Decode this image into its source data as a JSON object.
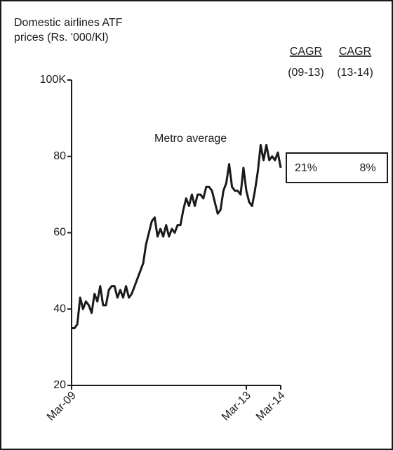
{
  "chart_data": {
    "type": "line",
    "title": "Domestic airlines ATF prices (Rs. '000/Kl)",
    "annotation": "Metro average",
    "cagr_table": {
      "headers": [
        [
          "CAGR",
          "(09-13)"
        ],
        [
          "CAGR",
          "(13-14)"
        ]
      ],
      "values": [
        "21%",
        "8%"
      ]
    },
    "categories": [
      "Mar-09",
      null,
      null,
      null,
      null,
      null,
      null,
      null,
      null,
      null,
      null,
      null,
      null,
      null,
      null,
      null,
      null,
      null,
      null,
      null,
      null,
      null,
      null,
      null,
      null,
      null,
      null,
      null,
      null,
      null,
      null,
      null,
      null,
      null,
      null,
      null,
      null,
      null,
      null,
      null,
      null,
      null,
      null,
      null,
      null,
      null,
      null,
      null,
      null,
      null,
      null,
      null,
      null,
      null,
      null,
      null,
      null,
      null,
      null,
      null,
      null,
      "Mar-13",
      null,
      null,
      null,
      null,
      null,
      null,
      null,
      null,
      null,
      null,
      null,
      "Mar-14"
    ],
    "series": [
      {
        "name": "Metro average",
        "color": "#1a1a1a",
        "values": [
          35,
          35,
          36,
          43,
          40,
          42,
          41,
          39,
          44,
          42,
          46,
          41,
          41,
          45,
          46,
          46,
          43,
          45,
          43,
          46,
          43,
          44,
          46,
          48,
          50,
          52,
          57,
          60,
          63,
          64,
          59,
          61,
          59,
          62,
          59,
          61,
          60,
          62,
          62,
          66,
          69,
          67,
          70,
          67,
          70,
          70,
          69,
          72,
          72,
          71,
          68,
          65,
          66,
          71,
          73,
          78,
          72,
          71,
          71,
          70,
          77,
          71,
          68,
          67,
          71,
          76,
          83,
          79,
          83,
          79,
          80,
          79,
          81,
          77
        ]
      }
    ],
    "ylim": [
      20,
      100
    ],
    "yticks": [
      20,
      40,
      60,
      80,
      {
        "value": 100,
        "label": "100K"
      }
    ]
  }
}
